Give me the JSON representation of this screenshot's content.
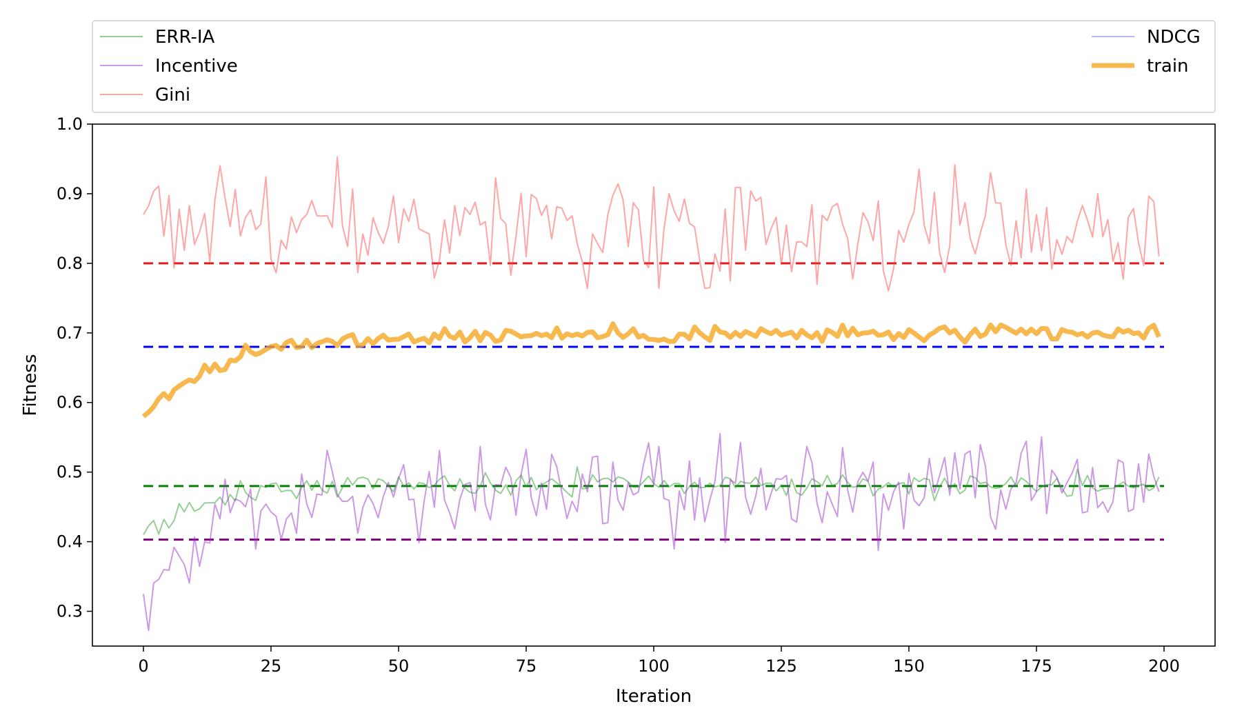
{
  "chart_data": {
    "type": "line",
    "xlabel": "Iteration",
    "ylabel": "Fitness",
    "xlim": [
      -10,
      210
    ],
    "ylim": [
      0.25,
      1.0
    ],
    "xticks": [
      0,
      25,
      50,
      75,
      100,
      125,
      150,
      175,
      200
    ],
    "yticks": [
      0.3,
      0.4,
      0.5,
      0.6,
      0.7,
      0.8,
      0.9,
      1.0
    ],
    "ytick_labels": [
      "0.3",
      "0.4",
      "0.5",
      "0.6",
      "0.7",
      "0.8",
      "0.9",
      "1.0"
    ],
    "grid": false,
    "legend_placement": "top (above plot, two columns)",
    "series": [
      {
        "name": "ERR-IA",
        "color": "#2ca02c",
        "kind": "thin",
        "trend": "rise",
        "start": 0.41,
        "plateau": 0.483,
        "tau": 12,
        "noise": 0.008
      },
      {
        "name": "Incentive",
        "color": "#9932cc",
        "kind": "thin",
        "trend": "rise",
        "start": 0.325,
        "plateau": 0.47,
        "tau": 14,
        "noise": 0.035
      },
      {
        "name": "Gini",
        "color": "#ff4c4c",
        "kind": "thin",
        "trend": "flat",
        "start": 0.87,
        "plateau": 0.855,
        "tau": 1,
        "noise": 0.04
      },
      {
        "name": "NDCG",
        "color": "#6b6bff",
        "kind": "thin",
        "trend": "none"
      },
      {
        "name": "train",
        "color": "#f5a623",
        "kind": "thick",
        "trend": "rise",
        "start": 0.58,
        "plateau": 0.698,
        "tau": 15,
        "noise": 0.006
      }
    ],
    "reference_lines": [
      {
        "y": 0.8,
        "color": "#e31a1c"
      },
      {
        "y": 0.68,
        "color": "#0000ff"
      },
      {
        "y": 0.48,
        "color": "#008000"
      },
      {
        "y": 0.403,
        "color": "#800080"
      }
    ],
    "n_points": 200
  }
}
